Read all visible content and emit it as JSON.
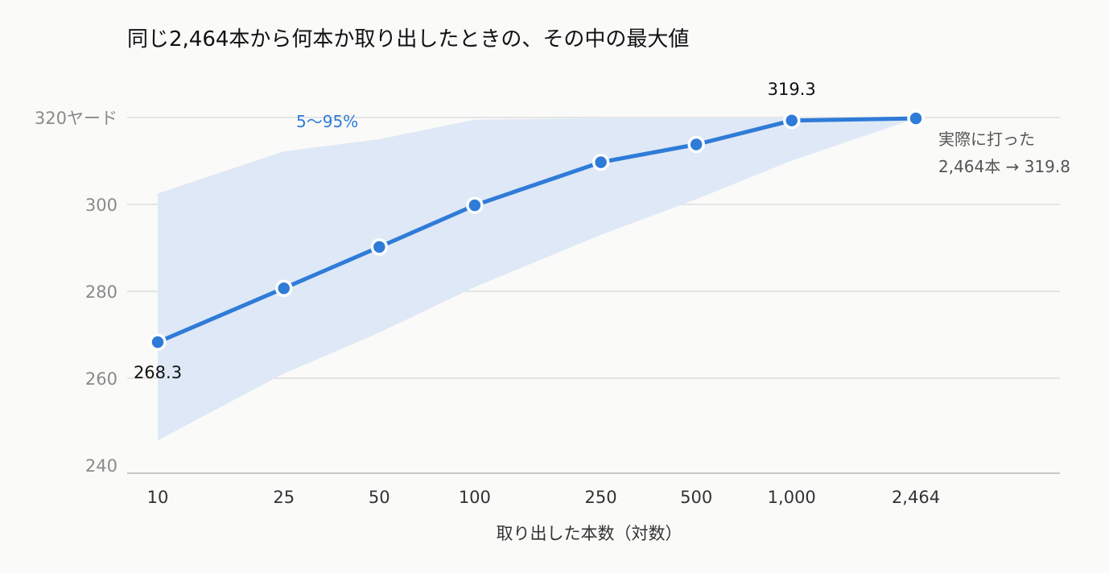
{
  "chart_data": {
    "type": "line",
    "title": "同じ2,464本から何本か取り出したときの、その中の最大値",
    "xlabel": "取り出した本数（対数）",
    "ylabel": "",
    "x_scale": "log",
    "x": [
      10,
      25,
      50,
      100,
      250,
      500,
      1000,
      2464
    ],
    "x_tick_labels": [
      "10",
      "25",
      "50",
      "100",
      "250",
      "500",
      "1,000",
      "2,464"
    ],
    "ylim": [
      240,
      320
    ],
    "y_ticks": [
      240,
      260,
      280,
      300,
      320
    ],
    "y_tick_labels": [
      "240",
      "260",
      "280",
      "300",
      "320ヤード"
    ],
    "grid": true,
    "series": [
      {
        "values": [
          268.3,
          280.7,
          290.2,
          299.8,
          309.7,
          313.8,
          319.3,
          319.8
        ]
      }
    ],
    "band": {
      "label": "5〜95%",
      "upper": [
        302.5,
        312.2,
        315.0,
        319.5,
        319.8,
        319.8,
        319.8,
        319.8
      ],
      "lower": [
        245.7,
        261.1,
        270.5,
        281.0,
        293.0,
        301.2,
        310.1,
        319.8
      ]
    },
    "data_labels": [
      {
        "index": 0,
        "text": "268.3"
      },
      {
        "index": 6,
        "text": "319.3"
      }
    ],
    "annotation": {
      "lines": [
        "実際に打った",
        "2,464本 → 319.8"
      ]
    },
    "colors": {
      "line": "#2f7bd8",
      "band": "#dce7f6",
      "grid": "#dddddd",
      "axis": "#c8c8c8"
    }
  }
}
